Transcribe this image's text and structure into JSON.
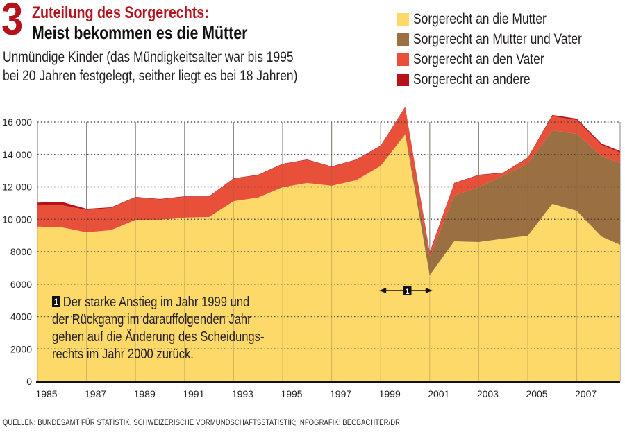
{
  "header": {
    "number": "3",
    "title_line1": "Zuteilung des Sorgerechts:",
    "title_line2": "Meist bekommen es die Mütter",
    "subtitle_line1": "Unmündige Kinder (das Mündigkeitsalter war bis 1995",
    "subtitle_line2": "bei 20 Jahren festgelegt, seither liegt es bei 18 Jahren)"
  },
  "annotation": {
    "badge": "1",
    "lines": [
      "Der starke Anstieg im Jahr 1999 und",
      "der Rückgang im darauffolgenden Jahr",
      "gehen auf die Änderung des Scheidungs-",
      "rechts im Jahr 2000 zurück."
    ],
    "marker_badge": "1",
    "marker_range": [
      1999,
      2001
    ]
  },
  "source": "QUELLEN: BUNDESAMT FÜR STATISTIK, SCHWEIZERISCHE VORMUNDSCHAFTSSTATISTIK; INFOGRAFIK: BEOBACHTER/DR",
  "colors": {
    "mother": "#fdd96a",
    "joint": "#9a6f41",
    "father": "#e8503a",
    "other": "#b5121b",
    "title_red": "#b5121b"
  },
  "chart_data": {
    "type": "area",
    "stacked": true,
    "title": "Zuteilung des Sorgerechts: Meist bekommen es die Mütter",
    "subtitle": "Unmündige Kinder (das Mündigkeitsalter war bis 1995 bei 20 Jahren festgelegt, seither liegt es bei 18 Jahren)",
    "xlabel": "",
    "ylabel": "",
    "x": [
      1985,
      1986,
      1987,
      1988,
      1989,
      1990,
      1991,
      1992,
      1993,
      1994,
      1995,
      1996,
      1997,
      1998,
      1999,
      2000,
      2001,
      2002,
      2003,
      2004,
      2005,
      2006,
      2007,
      2008,
      2009
    ],
    "xticks": [
      "1985",
      "1987",
      "1989",
      "1991",
      "1993",
      "1995",
      "1997",
      "1999",
      "2001",
      "2003",
      "2005",
      "2007"
    ],
    "xtick_values": [
      1985,
      1987,
      1989,
      1991,
      1993,
      1995,
      1997,
      1999,
      2001,
      2003,
      2005,
      2007
    ],
    "yticks": [
      "0",
      "2000",
      "4000",
      "6000",
      "8000",
      "10 000",
      "12 000",
      "14 000",
      "16 000"
    ],
    "ytick_values": [
      0,
      2000,
      4000,
      6000,
      8000,
      10000,
      12000,
      14000,
      16000
    ],
    "ylim": [
      0,
      16000
    ],
    "grid": true,
    "legend_position": "top-right",
    "series": [
      {
        "name": "Sorgerecht an die Mutter",
        "color": "#fdd96a",
        "values": [
          9550,
          9500,
          9200,
          9330,
          9970,
          9970,
          10100,
          10140,
          11120,
          11340,
          11980,
          12240,
          12070,
          12410,
          13300,
          15230,
          6550,
          8640,
          8600,
          8810,
          8980,
          10950,
          10520,
          8940,
          8430
        ]
      },
      {
        "name": "Sorgerecht an Mutter und Vater",
        "color": "#9a6f41",
        "values": [
          0,
          0,
          0,
          0,
          0,
          0,
          0,
          0,
          0,
          0,
          0,
          0,
          0,
          0,
          0,
          50,
          1110,
          2830,
          3380,
          3890,
          4450,
          4540,
          4750,
          4960,
          5040
        ]
      },
      {
        "name": "Sorgerecht an den Vater",
        "color": "#e8503a",
        "values": [
          1320,
          1370,
          1370,
          1370,
          1380,
          1250,
          1290,
          1250,
          1380,
          1380,
          1420,
          1420,
          1160,
          1250,
          1220,
          1630,
          210,
          740,
          740,
          150,
          350,
          870,
          850,
          700,
          650
        ]
      },
      {
        "name": "Sorgerecht an andere",
        "color": "#b5121b",
        "values": [
          160,
          200,
          80,
          40,
          30,
          30,
          30,
          30,
          30,
          30,
          30,
          30,
          30,
          30,
          30,
          30,
          90,
          30,
          30,
          30,
          30,
          70,
          90,
          80,
          90
        ]
      }
    ]
  }
}
